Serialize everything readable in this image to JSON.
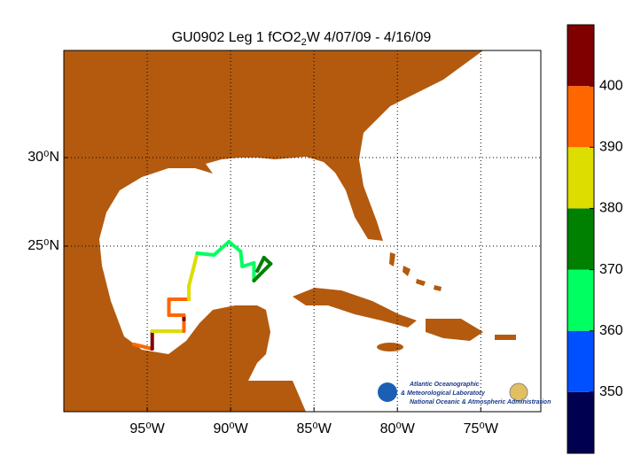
{
  "map": {
    "title": {
      "main": "GU0902 Leg 1 fCO2",
      "sub": "2",
      "rest": "W 4/07/09 - 4/16/09"
    },
    "xlim": [
      -100,
      -71.4
    ],
    "ylim": [
      15.65,
      36.05
    ],
    "xticks": [
      {
        "value": -95,
        "label": "95⁰W"
      },
      {
        "value": -90,
        "label": "90⁰W"
      },
      {
        "value": -85,
        "label": "85⁰W"
      },
      {
        "value": -80,
        "label": "80⁰W"
      },
      {
        "value": -75,
        "label": "75⁰W"
      }
    ],
    "yticks": [
      {
        "value": 30,
        "label": "30⁰N"
      },
      {
        "value": 25,
        "label": "25⁰N"
      }
    ],
    "grid": true,
    "track": {
      "lon": [
        -95.8,
        -94.7,
        -94.7,
        -93.7,
        -92.8,
        -92.8,
        -92.8,
        -93.7,
        -93.7,
        -92.5,
        -92.5,
        -92.0,
        -91.0,
        -90.1,
        -89.4,
        -89.3,
        -88.6,
        -88.6,
        -87.6,
        -88.0,
        -88.4
      ],
      "lat": [
        19.45,
        19.2,
        20.2,
        20.2,
        20.2,
        20.85,
        21.1,
        21.1,
        22.0,
        22.0,
        22.75,
        24.6,
        24.5,
        25.25,
        24.7,
        23.85,
        24.05,
        23.05,
        24.0,
        24.35,
        23.6
      ],
      "value": [
        398,
        402,
        388,
        386,
        392,
        405,
        398,
        395,
        393,
        389,
        385,
        365,
        362,
        361,
        364,
        366,
        368,
        373,
        375,
        372,
        376
      ]
    },
    "colorbar": {
      "levels": [
        340,
        350,
        360,
        370,
        380,
        390,
        400,
        410
      ],
      "colors": [
        "#000050",
        "#0050ff",
        "#00ff60",
        "#008000",
        "#dddd00",
        "#ff6600",
        "#800000"
      ],
      "ticks": [
        350,
        360,
        370,
        380,
        390,
        400
      ]
    },
    "logo": {
      "line1": "Atlantic Oceanographic",
      "line2": "& Meteorological Laboratory",
      "line3": "National Oceanic & Atmospheric Administration"
    }
  }
}
